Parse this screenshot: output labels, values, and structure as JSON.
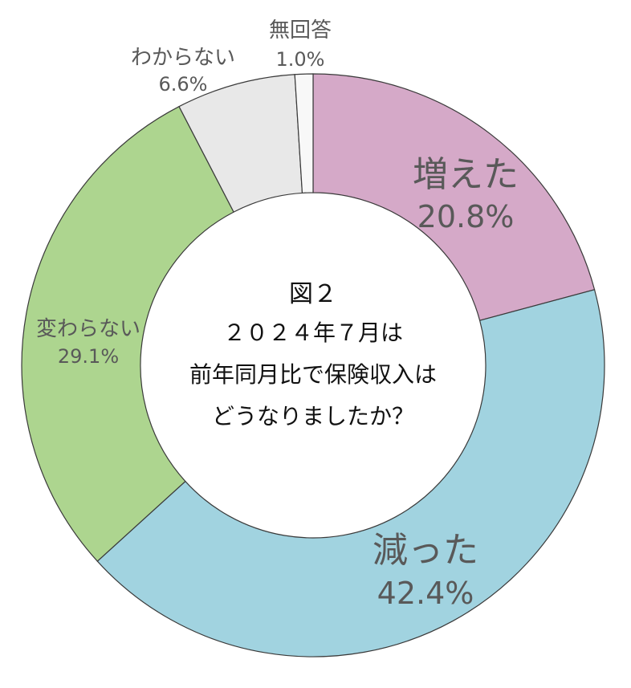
{
  "chart_data": {
    "type": "pie",
    "donut": true,
    "title_lines": [
      "図２",
      "２０２４年７月は",
      "前年同月比で保険収入は",
      "どうなりましたか？"
    ],
    "slices": [
      {
        "label": "増えた",
        "value": 20.8,
        "value_label": "20.8%",
        "color": "#d5a9c8"
      },
      {
        "label": "減った",
        "value": 42.4,
        "value_label": "42.4%",
        "color": "#a1d3e0"
      },
      {
        "label": "変わらない",
        "value": 29.1,
        "value_label": "29.1%",
        "color": "#add58f"
      },
      {
        "label": "わからない",
        "value": 6.6,
        "value_label": "6.6%",
        "color": "#e8e8e8"
      },
      {
        "label": "無回答",
        "value": 1.0,
        "value_label": "1.0%",
        "color": "#f8f8f8"
      }
    ],
    "start_angle": "12 o'clock",
    "direction": "clockwise",
    "legend": "none"
  }
}
